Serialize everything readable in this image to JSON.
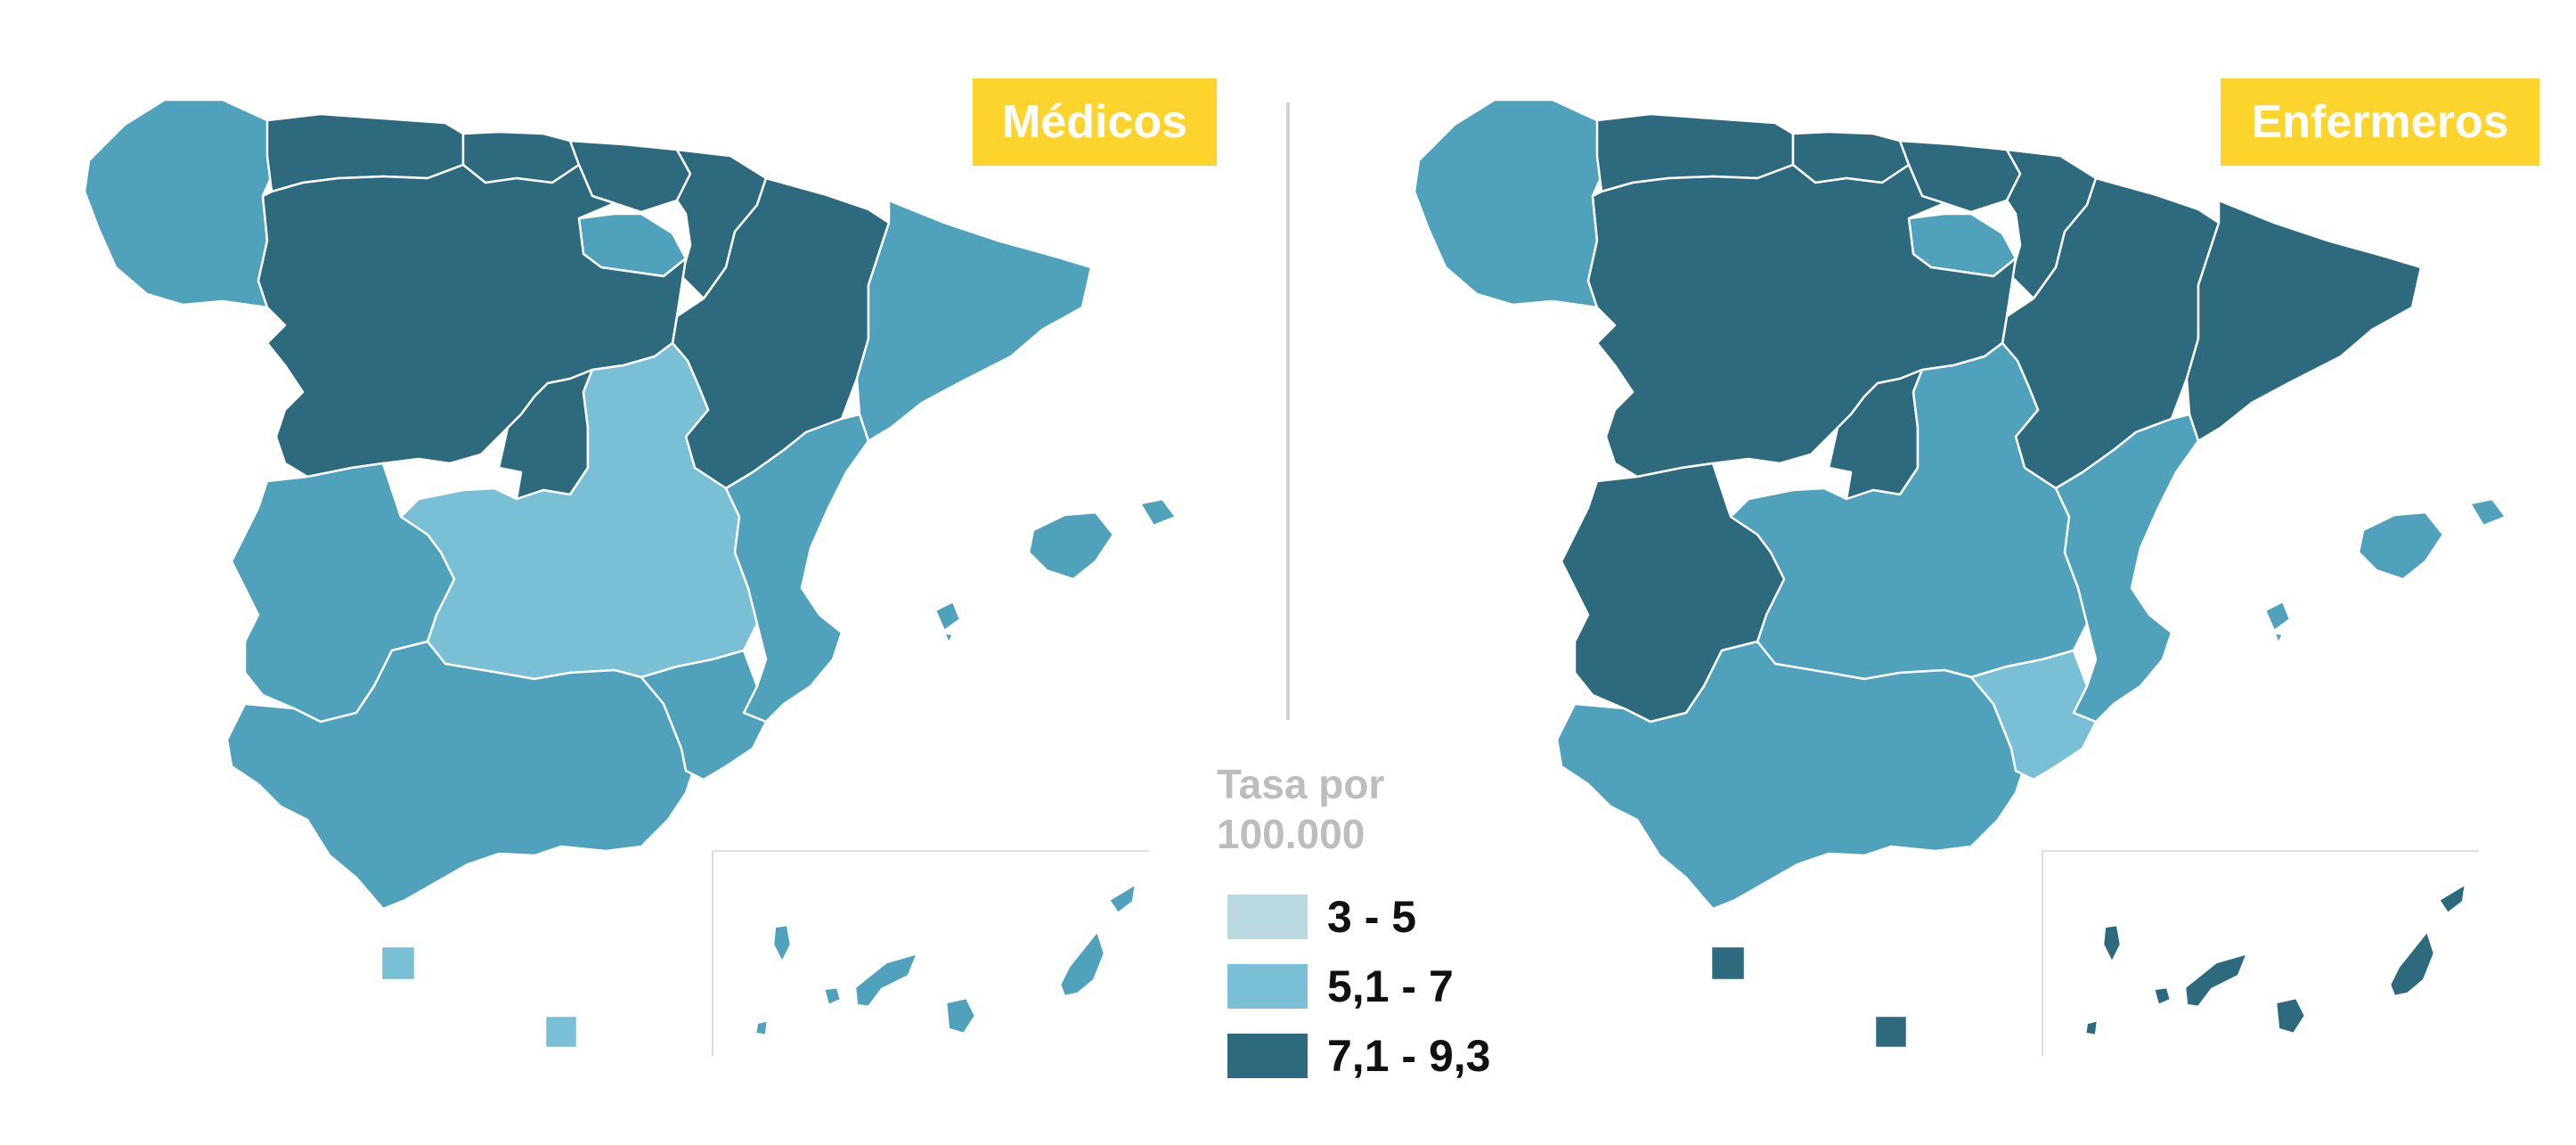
{
  "panels": [
    {
      "title": "Médicos"
    },
    {
      "title": "Enfermeros"
    }
  ],
  "legend": {
    "title_line1": "Tasa por",
    "title_line2": "100.000",
    "classes": [
      {
        "label": "3 - 5",
        "color": "#B9D8E0"
      },
      {
        "label": "5,1 - 7",
        "color": "#79BFD6"
      },
      {
        "label": "7,1 - 9,3",
        "color": "#2D6A7E"
      }
    ]
  },
  "colors": {
    "badge": "#FCD42C",
    "light": "#B9D8E0",
    "mid_light": "#79BFD6",
    "mid": "#4FA1BC",
    "dark": "#2D6A7E",
    "divider": "#D3D3D3"
  },
  "map_data": {
    "regions": [
      {
        "name": "Galicia",
        "medicos": "mid",
        "enfermeros": "mid"
      },
      {
        "name": "Asturias",
        "medicos": "dark",
        "enfermeros": "dark"
      },
      {
        "name": "Cantabria",
        "medicos": "dark",
        "enfermeros": "dark"
      },
      {
        "name": "País Vasco",
        "medicos": "dark",
        "enfermeros": "dark"
      },
      {
        "name": "Navarra",
        "medicos": "dark",
        "enfermeros": "dark"
      },
      {
        "name": "La Rioja",
        "medicos": "mid",
        "enfermeros": "mid"
      },
      {
        "name": "Aragón",
        "medicos": "dark",
        "enfermeros": "dark"
      },
      {
        "name": "Cataluña",
        "medicos": "mid",
        "enfermeros": "dark"
      },
      {
        "name": "Castilla y León",
        "medicos": "dark",
        "enfermeros": "dark"
      },
      {
        "name": "Madrid",
        "medicos": "dark",
        "enfermeros": "dark"
      },
      {
        "name": "Castilla-La Mancha",
        "medicos": "mid_light",
        "enfermeros": "mid"
      },
      {
        "name": "Comunidad Valenciana",
        "medicos": "mid",
        "enfermeros": "mid"
      },
      {
        "name": "Extremadura",
        "medicos": "mid",
        "enfermeros": "dark"
      },
      {
        "name": "Andalucía",
        "medicos": "mid",
        "enfermeros": "mid"
      },
      {
        "name": "Murcia",
        "medicos": "mid",
        "enfermeros": "mid_light"
      },
      {
        "name": "Islas Baleares",
        "medicos": "mid",
        "enfermeros": "mid"
      },
      {
        "name": "Ceuta",
        "medicos": "mid_light",
        "enfermeros": "dark"
      },
      {
        "name": "Melilla",
        "medicos": "mid_light",
        "enfermeros": "dark"
      },
      {
        "name": "Canarias",
        "medicos": "mid",
        "enfermeros": "dark"
      }
    ]
  }
}
